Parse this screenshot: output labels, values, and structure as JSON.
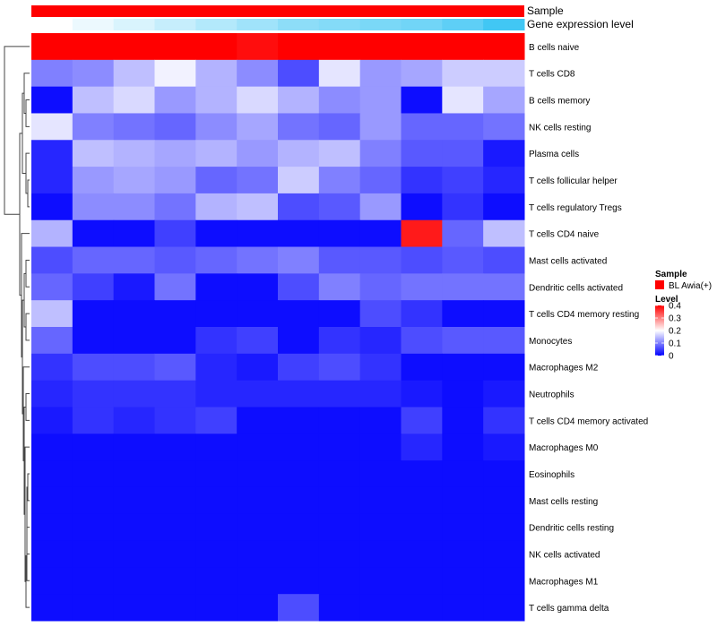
{
  "chart_data": {
    "type": "heatmap",
    "annotation_tracks": [
      "Sample",
      "Gene expression level"
    ],
    "gene_expression_track": [
      0.0,
      0.1,
      0.2,
      0.3,
      0.4,
      0.5,
      0.6,
      0.65,
      0.7,
      0.75,
      0.85,
      1.0
    ],
    "rows": [
      "B cells naive",
      "T cells CD8",
      "B cells memory",
      "NK cells resting",
      "Plasma cells",
      "T cells follicular helper",
      "T cells regulatory  Tregs",
      "T cells CD4 naive",
      "Mast cells activated",
      "Dendritic cells activated",
      "T cells CD4 memory resting",
      "Monocytes",
      "Macrophages M2",
      "Neutrophils",
      "T cells CD4 memory activated",
      "Macrophages M0",
      "Eosinophils",
      "Mast cells resting",
      "Dendritic cells resting",
      "NK cells activated",
      "Macrophages M1",
      "T cells gamma delta"
    ],
    "values": [
      [
        0.52,
        0.46,
        0.4,
        0.44,
        0.43,
        0.39,
        0.47,
        0.5,
        0.52,
        0.51,
        0.47,
        0.52
      ],
      [
        0.1,
        0.11,
        0.15,
        0.19,
        0.14,
        0.11,
        0.06,
        0.18,
        0.12,
        0.13,
        0.16,
        0.16
      ],
      [
        0.01,
        0.15,
        0.17,
        0.12,
        0.14,
        0.17,
        0.14,
        0.11,
        0.12,
        0.01,
        0.18,
        0.13
      ],
      [
        0.18,
        0.1,
        0.09,
        0.08,
        0.11,
        0.13,
        0.09,
        0.08,
        0.12,
        0.08,
        0.08,
        0.09
      ],
      [
        0.03,
        0.15,
        0.14,
        0.13,
        0.14,
        0.12,
        0.14,
        0.15,
        0.1,
        0.07,
        0.07,
        0.02
      ],
      [
        0.03,
        0.12,
        0.13,
        0.12,
        0.08,
        0.09,
        0.16,
        0.1,
        0.08,
        0.04,
        0.05,
        0.03
      ],
      [
        0.01,
        0.11,
        0.11,
        0.09,
        0.14,
        0.15,
        0.06,
        0.07,
        0.12,
        0.01,
        0.04,
        0.01
      ],
      [
        0.14,
        0.01,
        0.01,
        0.05,
        0.01,
        0.01,
        0.01,
        0.01,
        0.01,
        0.38,
        0.08,
        0.15
      ],
      [
        0.06,
        0.08,
        0.08,
        0.07,
        0.08,
        0.09,
        0.1,
        0.07,
        0.07,
        0.06,
        0.07,
        0.06
      ],
      [
        0.08,
        0.05,
        0.02,
        0.09,
        0.01,
        0.01,
        0.06,
        0.1,
        0.08,
        0.09,
        0.09,
        0.09
      ],
      [
        0.15,
        0.01,
        0.01,
        0.01,
        0.01,
        0.01,
        0.01,
        0.01,
        0.06,
        0.04,
        0.01,
        0.01
      ],
      [
        0.08,
        0.01,
        0.01,
        0.01,
        0.04,
        0.05,
        0.01,
        0.04,
        0.03,
        0.06,
        0.07,
        0.07
      ],
      [
        0.04,
        0.06,
        0.06,
        0.07,
        0.03,
        0.02,
        0.05,
        0.06,
        0.04,
        0.01,
        0.01,
        0.01
      ],
      [
        0.03,
        0.04,
        0.04,
        0.04,
        0.03,
        0.03,
        0.03,
        0.03,
        0.03,
        0.02,
        0.01,
        0.02
      ],
      [
        0.02,
        0.04,
        0.03,
        0.04,
        0.05,
        0.01,
        0.01,
        0.01,
        0.01,
        0.05,
        0.01,
        0.04
      ],
      [
        0.01,
        0.01,
        0.01,
        0.01,
        0.01,
        0.01,
        0.01,
        0.01,
        0.01,
        0.03,
        0.01,
        0.02
      ],
      [
        0.01,
        0.01,
        0.01,
        0.01,
        0.01,
        0.01,
        0.01,
        0.01,
        0.01,
        0.01,
        0.01,
        0.01
      ],
      [
        0.01,
        0.01,
        0.01,
        0.01,
        0.01,
        0.01,
        0.01,
        0.01,
        0.01,
        0.01,
        0.01,
        0.01
      ],
      [
        0.01,
        0.01,
        0.01,
        0.01,
        0.01,
        0.01,
        0.01,
        0.01,
        0.01,
        0.01,
        0.01,
        0.01
      ],
      [
        0.01,
        0.01,
        0.01,
        0.01,
        0.01,
        0.01,
        0.01,
        0.01,
        0.01,
        0.01,
        0.01,
        0.01
      ],
      [
        0.01,
        0.01,
        0.01,
        0.01,
        0.01,
        0.01,
        0.01,
        0.01,
        0.01,
        0.01,
        0.01,
        0.01
      ],
      [
        0.01,
        0.01,
        0.01,
        0.01,
        0.01,
        0.01,
        0.06,
        0.01,
        0.01,
        0.01,
        0.01,
        0.01
      ]
    ],
    "color_scale": {
      "min": 0.0,
      "mid": 0.2,
      "max": 0.4,
      "low_color": "#0000ff",
      "mid_color": "#ffffff",
      "high_color": "#ff0000"
    },
    "legend": {
      "placement": "right",
      "sample_title": "Sample",
      "sample_entry": "BL Awia(+)",
      "sample_color": "#ff0000",
      "level_title": "Level",
      "level_ticks": [
        "0",
        "0.1",
        "0.2",
        "0.3",
        "0.4"
      ]
    },
    "row_dendrogram": true,
    "expression_track_colors": {
      "low": "#ffffff",
      "high": "#41c7f4"
    }
  }
}
